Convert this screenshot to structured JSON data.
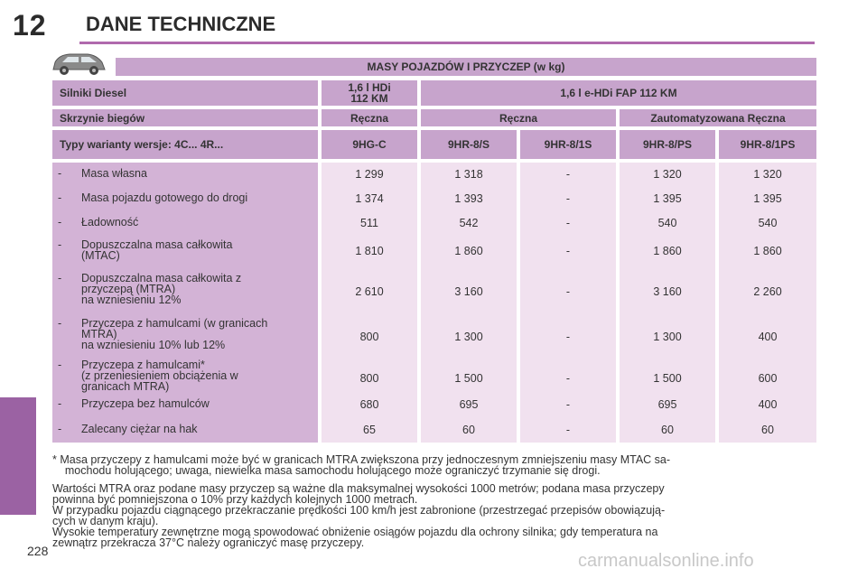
{
  "chapter": {
    "number": "12",
    "title": "DANE TECHNICZNE"
  },
  "page_number": "228",
  "watermark": "carmanualsonline.info",
  "table": {
    "title": "MASY POJAZDÓW I PRZYCZEP (w kg)",
    "engines_label": "Silniki Diesel",
    "engine_1": "1,6 l HDi\n112 KM",
    "engine_2": "1,6 l e-HDi FAP 112 KM",
    "gearbox_label": "Skrzynie biegów",
    "gearbox_1": "Ręczna",
    "gearbox_2": "Ręczna",
    "gearbox_3": "Zautomatyzowana Ręczna",
    "types_label": "Typy warianty wersje: 4C... 4R...",
    "types": [
      "9HG-C",
      "9HR-8/S",
      "9HR-8/1S",
      "9HR-8/PS",
      "9HR-8/1PS"
    ],
    "rows": [
      {
        "lines": [
          "Masa własna"
        ],
        "values": [
          "1 299",
          "1 318",
          "-",
          "1 320",
          "1 320"
        ]
      },
      {
        "lines": [
          "Masa pojazdu gotowego do drogi"
        ],
        "values": [
          "1 374",
          "1 393",
          "-",
          "1 395",
          "1 395"
        ]
      },
      {
        "lines": [
          "Ładowność"
        ],
        "values": [
          "511",
          "542",
          "-",
          "540",
          "540"
        ]
      },
      {
        "lines": [
          "Dopuszczalna masa całkowita",
          "(MTAC)"
        ],
        "values": [
          "1 810",
          "1 860",
          "-",
          "1 860",
          "1 860"
        ]
      },
      {
        "lines": [
          "Dopuszczalna masa całkowita z",
          "przyczepą (MTRA)",
          " na wzniesieniu 12%"
        ],
        "values": [
          "2 610",
          "3 160",
          "-",
          "3 160",
          "2 260"
        ]
      },
      {
        "lines": [
          "Przyczepa z hamulcami (w granicach",
          "MTRA)",
          " na wzniesieniu 10% lub 12%"
        ],
        "values": [
          "800",
          "1 300",
          "-",
          "1 300",
          "400"
        ]
      },
      {
        "lines": [
          "Przyczepa z hamulcami*",
          "(z przeniesieniem obciążenia w",
          "granicach MTRA)"
        ],
        "values": [
          "800",
          "1 500",
          "-",
          "1 500",
          "600"
        ]
      },
      {
        "lines": [
          "Przyczepa bez hamulców"
        ],
        "values": [
          "680",
          "695",
          "-",
          "695",
          "400"
        ]
      },
      {
        "lines": [
          "Zalecany ciężar na hak"
        ],
        "values": [
          "65",
          "60",
          "-",
          "60",
          "60"
        ]
      }
    ]
  },
  "notes": [
    "* Masa przyczepy z hamulcami może być w granicach MTRA zwiększona przy jednoczesnym zmniejszeniu masy MTAC sa-",
    "    mochodu holującego; uwaga, niewielka masa samochodu holującego może ograniczyć trzymanie się drogi.",
    "Wartości MTRA oraz podane masy przyczep są ważne dla maksymalnej wysokości 1000 metrów; podana masa przyczepy",
    "powinna być pomniejszona o 10% przy każdych kolejnych 1000 metrach.",
    "W przypadku pojazdu ciągnącego przekraczanie prędkości 100 km/h jest zabronione (przestrzegać przepisów obowiązują-",
    "cych w danym kraju).",
    "Wysokie temperatury zewnętrzne mogą spowodować obniżenie osiągów pojazdu dla ochrony silnika; gdy temperatura na",
    "zewnątrz przekracza 37°C należy ograniczyć masę przyczepy."
  ],
  "colors": {
    "accent": "#b06aad",
    "header_band": "#c7a4cc",
    "label_column": "#d3b3d6",
    "value_column": "#f1e1ef",
    "side_tab": "#9b62a3"
  },
  "icons": {
    "vehicle": "car-icon"
  }
}
